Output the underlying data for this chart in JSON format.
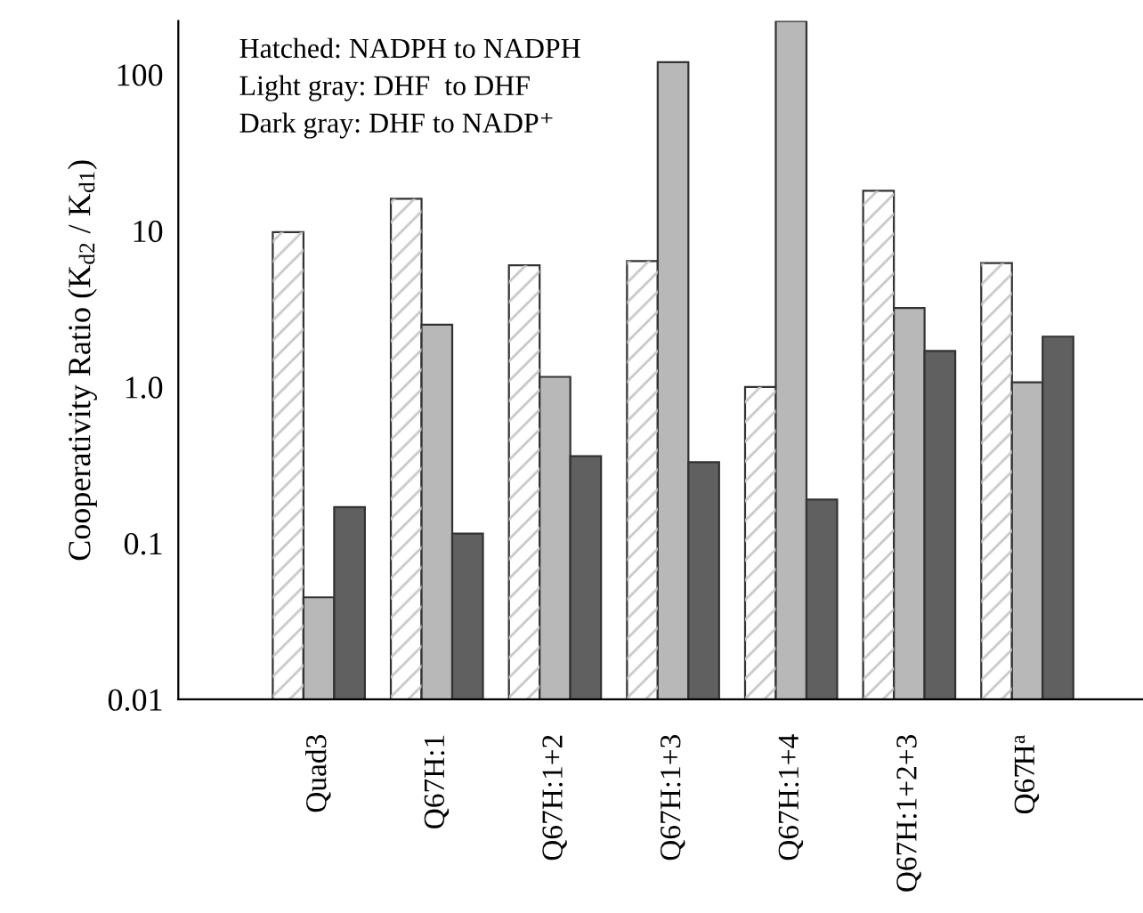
{
  "chart_data": {
    "type": "bar",
    "ylabel": "Cooperativity Ratio (K$_{d2}$ / K$_{d1}$)",
    "categories": [
      "Quad3",
      "Q67H:1",
      "Q67H:1+2",
      "Q67H:1+3",
      "Q67H:1+4",
      "Q67H:1+2+3",
      "Q67H$^{a}$"
    ],
    "series": [
      {
        "color": "#ffffff",
        "values": [
          9.8,
          16,
          6.0,
          6.4,
          1.0,
          18,
          6.2
        ]
      },
      {
        "color": "#b8b8b8",
        "values": [
          0.045,
          2.5,
          1.16,
          120,
          220,
          3.2,
          1.07
        ]
      },
      {
        "color": "#606060",
        "values": [
          0.17,
          0.115,
          0.36,
          0.33,
          0.19,
          1.7,
          2.1
        ]
      }
    ],
    "log": "y",
    "ylim": [
      0.01,
      220
    ],
    "yticks": [
      0.01,
      0.1,
      {
        "value": 1,
        "label": "1.0"
      },
      10,
      100
    ],
    "grid": false,
    "legend": false,
    "annotations": [
      "Hatched: NADPH to NADPH",
      "Light gray: DHF  to DHF",
      "Dark gray: DHF to NADP⁺"
    ]
  }
}
